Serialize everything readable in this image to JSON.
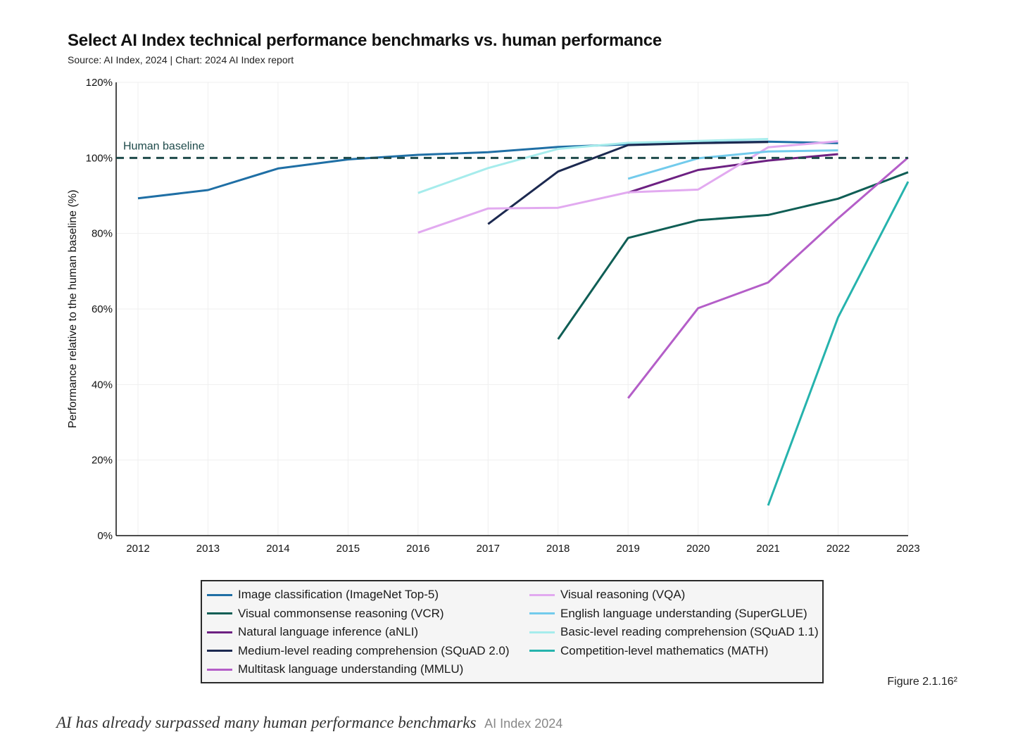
{
  "title": "Select AI Index technical performance benchmarks vs. human performance",
  "source": "Source: AI Index, 2024 | Chart: 2024 AI Index report",
  "figure_number": "Figure 2.1.16²",
  "caption": {
    "text": "AI has already surpassed many human performance benchmarks",
    "credit": "AI Index 2024"
  },
  "chart_data": {
    "type": "line",
    "ylabel": "Performance relative to the human baseline (%)",
    "xlabel": "",
    "x_ticks": [
      "2012",
      "2013",
      "2014",
      "2015",
      "2016",
      "2017",
      "2018",
      "2019",
      "2020",
      "2021",
      "2022",
      "2023"
    ],
    "y_ticks": [
      "0%",
      "20%",
      "40%",
      "60%",
      "80%",
      "100%",
      "120%"
    ],
    "xlim": [
      2012,
      2023
    ],
    "ylim": [
      0,
      120
    ],
    "grid": "vertical and horizontal light grid",
    "baseline": {
      "label": "Human baseline",
      "value": 100,
      "color": "#1e4a4a"
    },
    "legend_position": "bottom",
    "series": [
      {
        "name": "Image classification (ImageNet Top-5)",
        "color": "#1f6fa5",
        "x": [
          2012,
          2013,
          2014,
          2015,
          2016,
          2017,
          2018,
          2019,
          2020,
          2021,
          2022
        ],
        "y": [
          89.3,
          91.5,
          97.2,
          99.6,
          100.8,
          101.5,
          102.9,
          103.6,
          104.0,
          104.3,
          103.9
        ]
      },
      {
        "name": "Visual commonsense reasoning (VCR)",
        "color": "#0f5e55",
        "x": [
          2018,
          2019,
          2020,
          2021,
          2022,
          2023
        ],
        "y": [
          52.0,
          78.8,
          83.5,
          84.9,
          89.2,
          96.2
        ]
      },
      {
        "name": "Natural language inference (aNLI)",
        "color": "#6d2182",
        "x": [
          2019,
          2020,
          2021,
          2022
        ],
        "y": [
          90.8,
          96.8,
          99.3,
          101.0
        ]
      },
      {
        "name": "Medium-level reading comprehension (SQuAD 2.0)",
        "color": "#1c2950",
        "x": [
          2017,
          2018,
          2019,
          2020,
          2021
        ],
        "y": [
          82.5,
          96.4,
          103.4,
          103.9,
          104.2
        ]
      },
      {
        "name": "Multitask language understanding (MMLU)",
        "color": "#b45ec8",
        "x": [
          2019,
          2020,
          2021,
          2022,
          2023
        ],
        "y": [
          36.4,
          60.2,
          67.0,
          84.0,
          100.1
        ]
      },
      {
        "name": "Visual reasoning (VQA)",
        "color": "#e2aaf0",
        "x": [
          2016,
          2017,
          2018,
          2019,
          2020,
          2021,
          2022
        ],
        "y": [
          80.2,
          86.6,
          86.8,
          90.9,
          91.6,
          102.8,
          104.4
        ]
      },
      {
        "name": "English language understanding (SuperGLUE)",
        "color": "#72cbec",
        "x": [
          2019,
          2020,
          2021,
          2022
        ],
        "y": [
          94.5,
          99.9,
          101.7,
          102.0
        ]
      },
      {
        "name": "Basic-level reading comprehension (SQuAD 1.1)",
        "color": "#a6ecec",
        "x": [
          2016,
          2017,
          2018,
          2019,
          2020,
          2021
        ],
        "y": [
          90.7,
          97.3,
          102.4,
          104.0,
          104.5,
          105.0
        ]
      },
      {
        "name": "Competition-level mathematics (MATH)",
        "color": "#26b3ad",
        "x": [
          2021,
          2022,
          2023
        ],
        "y": [
          8.0,
          57.8,
          93.7
        ]
      }
    ]
  }
}
